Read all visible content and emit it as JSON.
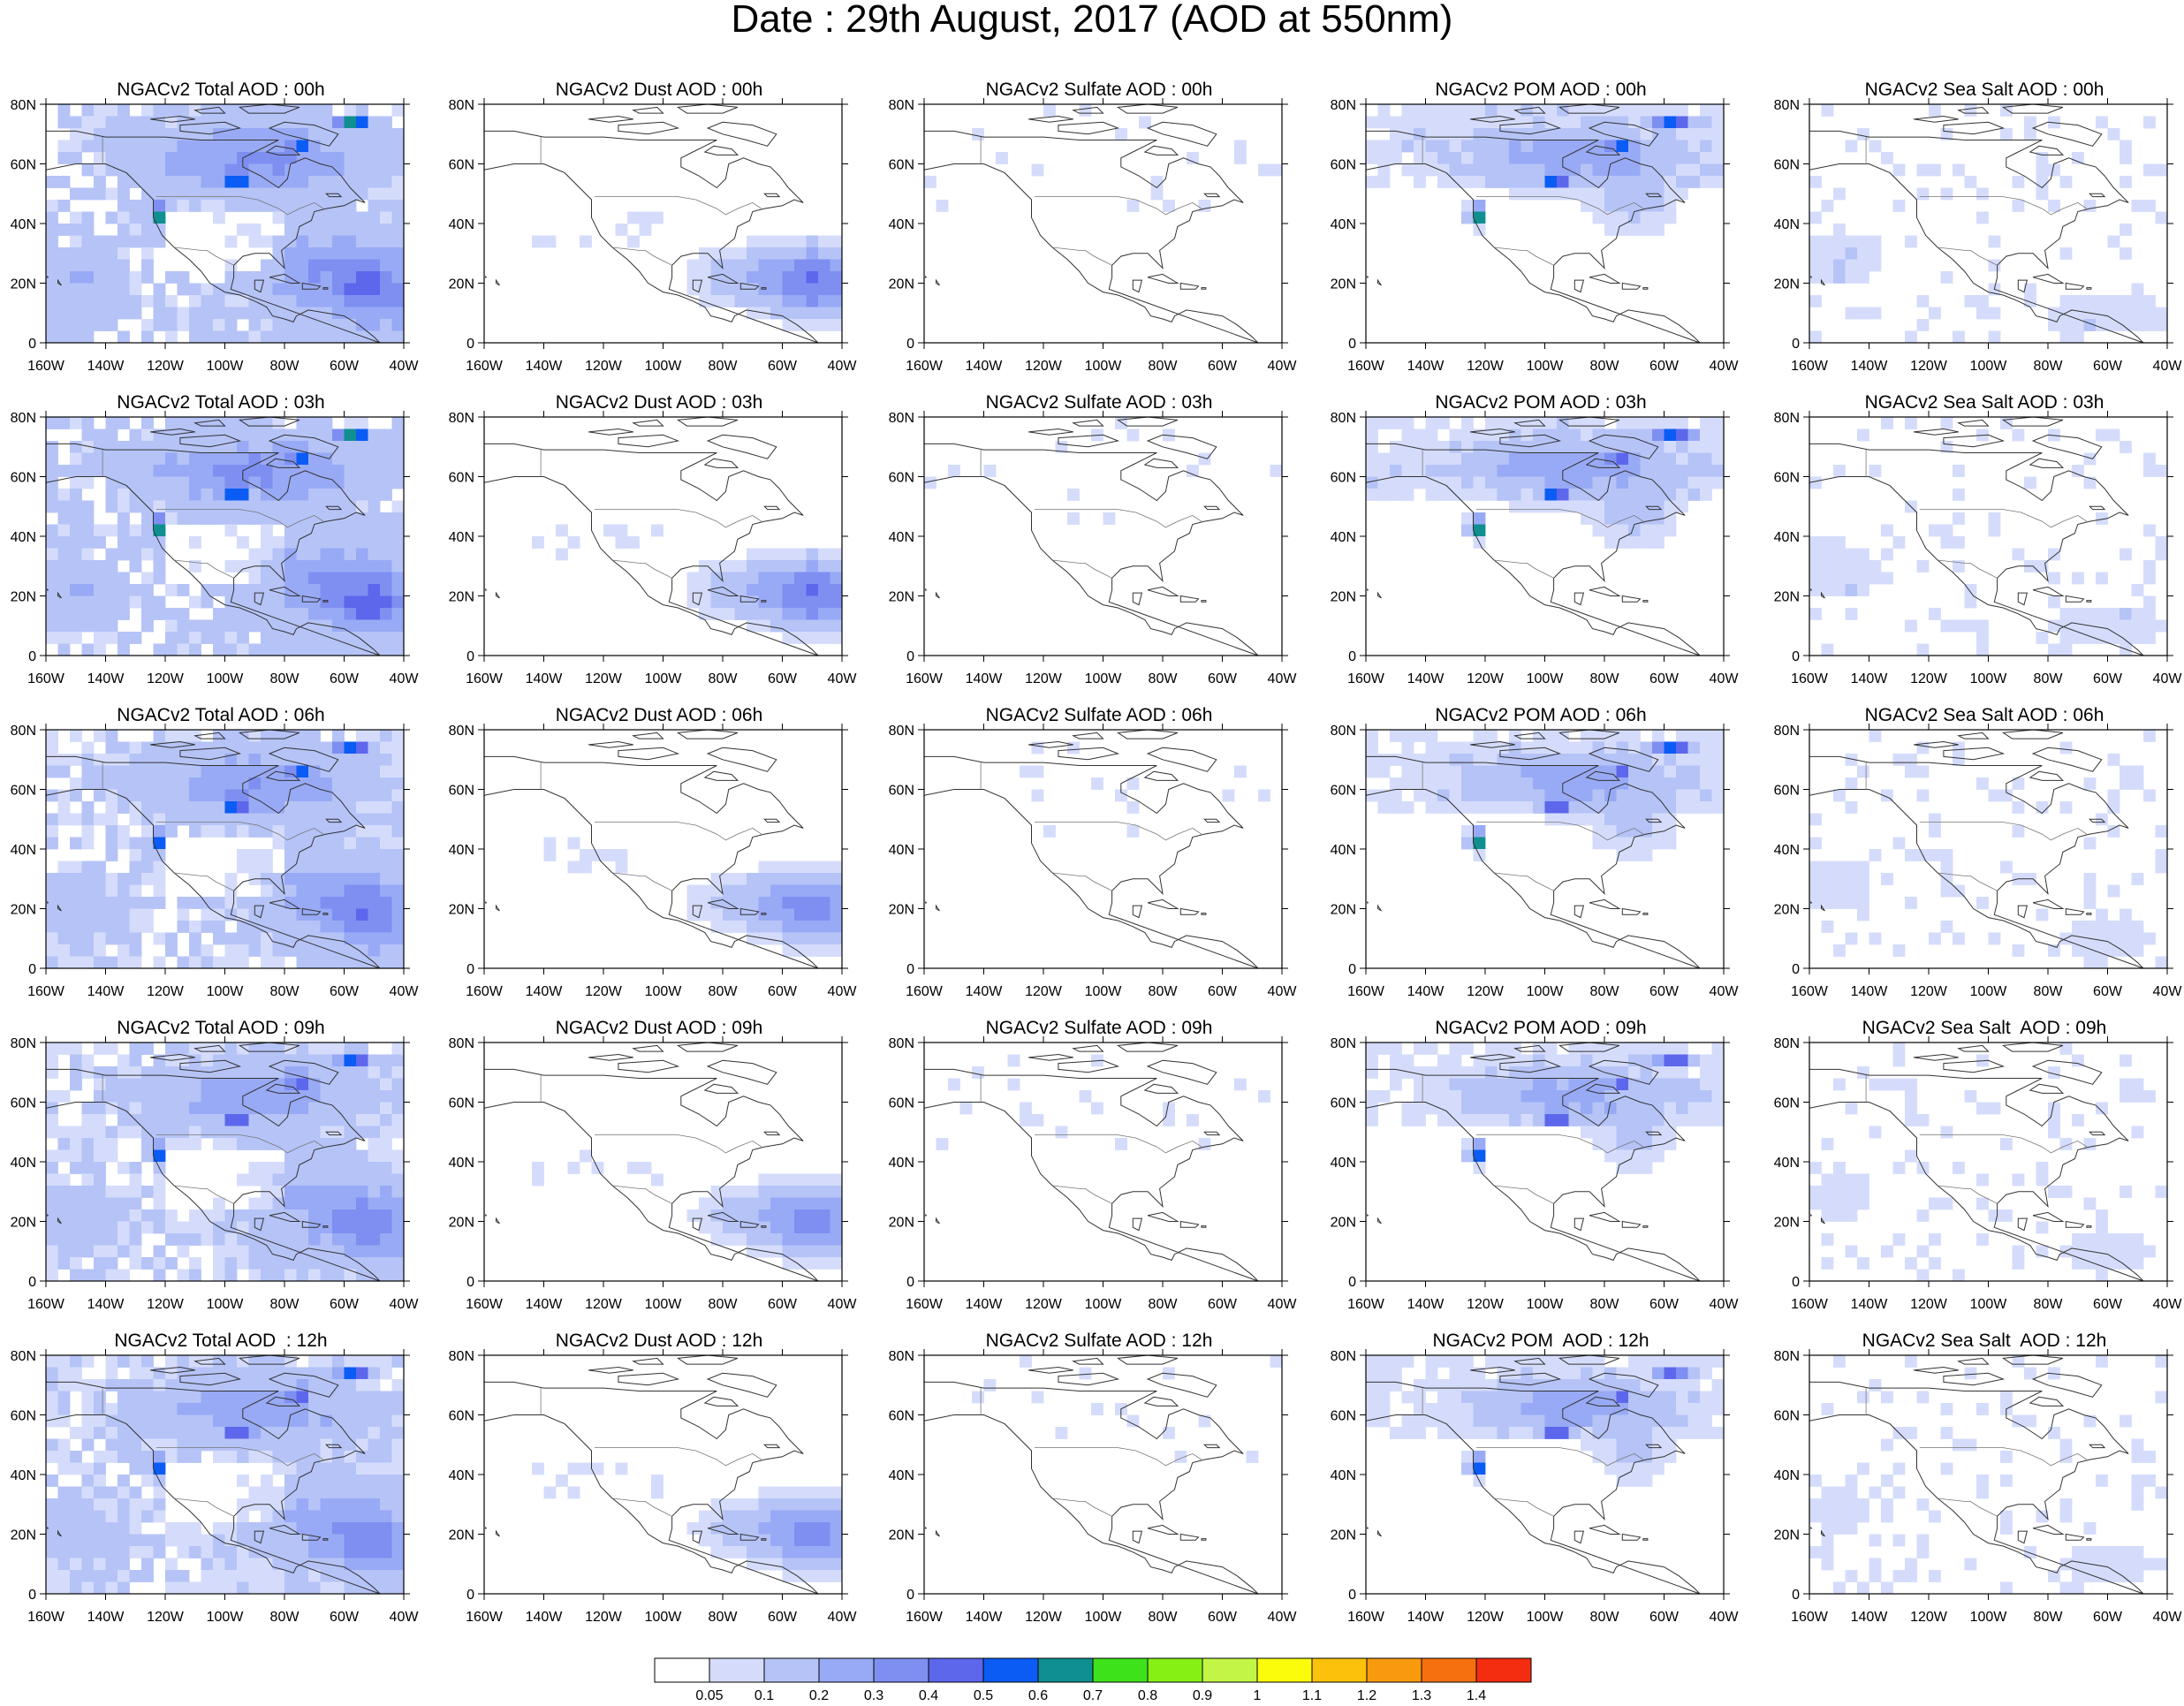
{
  "title": "Date : 29th August, 2017 (AOD at 550nm)",
  "x_axis_labels": [
    "160W",
    "140W",
    "120W",
    "100W",
    "80W",
    "60W",
    "40W"
  ],
  "y_axis_labels": [
    "0",
    "20N",
    "40N",
    "60N",
    "80N"
  ],
  "panel_titles": [
    [
      "NGACv2 Total AOD : 00h",
      "NGACv2 Dust AOD : 00h",
      "NGACv2 Sulfate AOD : 00h",
      "NGACv2 POM AOD : 00h",
      "NGACv2 Sea Salt AOD : 00h"
    ],
    [
      "NGACv2 Total AOD : 03h",
      "NGACv2 Dust AOD : 03h",
      "NGACv2 Sulfate AOD : 03h",
      "NGACv2 POM AOD : 03h",
      "NGACv2 Sea Salt AOD : 03h"
    ],
    [
      "NGACv2 Total AOD : 06h",
      "NGACv2 Dust AOD : 06h",
      "NGACv2 Sulfate AOD : 06h",
      "NGACv2 POM AOD : 06h",
      "NGACv2 Sea Salt AOD : 06h"
    ],
    [
      "NGACv2 Total AOD : 09h",
      "NGACv2 Dust AOD : 09h",
      "NGACv2 Sulfate AOD : 09h",
      "NGACv2 POM AOD : 09h",
      "NGACv2 Sea Salt  AOD : 09h"
    ],
    [
      "NGACv2 Total AOD  : 12h",
      "NGACv2 Dust AOD : 12h",
      "NGACv2 Sulfate AOD : 12h",
      "NGACv2 POM  AOD : 12h",
      "NGACv2 Sea Salt  AOD : 12h"
    ]
  ],
  "colorbar": {
    "levels": [
      "0.05",
      "0.1",
      "0.2",
      "0.3",
      "0.4",
      "0.5",
      "0.6",
      "0.7",
      "0.8",
      "0.9",
      "1",
      "1.1",
      "1.2",
      "1.3",
      "1.4"
    ],
    "colors": [
      "#ffffff",
      "#d5dcfb",
      "#b5c3f7",
      "#98aaf5",
      "#7e8ff1",
      "#5d67ec",
      "#0a5cf4",
      "#0f8f8f",
      "#3ee21b",
      "#86f015",
      "#c2f545",
      "#fbfb0c",
      "#fbc10b",
      "#f89a0e",
      "#f7700f",
      "#f52d10"
    ]
  },
  "intensity_by_row": [
    1.0,
    1.0,
    0.9,
    0.85,
    0.85
  ]
}
